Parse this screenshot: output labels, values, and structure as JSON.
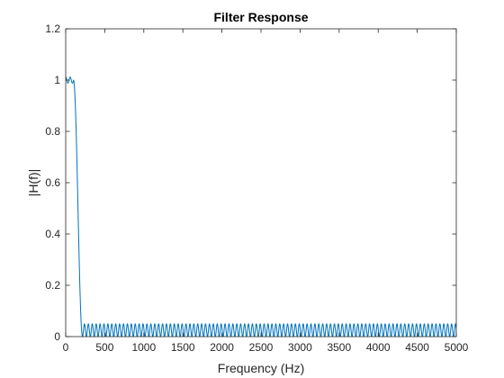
{
  "colors": {
    "line": "#0072BD",
    "axis": "#262626",
    "background": "#ffffff"
  },
  "chart_data": {
    "type": "line",
    "title": "Filter Response",
    "xlabel": "Frequency (Hz)",
    "ylabel": "|H(f)|",
    "xlim": [
      0,
      5000
    ],
    "ylim": [
      0,
      1.2
    ],
    "xticks": [
      0,
      500,
      1000,
      1500,
      2000,
      2500,
      3000,
      3500,
      4000,
      4500,
      5000
    ],
    "yticks": [
      0,
      0.2,
      0.4,
      0.6,
      0.8,
      1,
      1.2
    ],
    "xtick_labels": [
      "0",
      "500",
      "1000",
      "1500",
      "2000",
      "2500",
      "3000",
      "3500",
      "4000",
      "4500",
      "5000"
    ],
    "ytick_labels": [
      "0",
      "0.2",
      "0.4",
      "0.6",
      "0.8",
      "1",
      "1.2"
    ],
    "grid": false,
    "legend": "none",
    "series": [
      {
        "passband": {
          "x_range": [
            0,
            100
          ],
          "level": 1.0,
          "ripple": 0.012
        },
        "transition": {
          "x_range": [
            100,
            215
          ],
          "y_range": [
            1.0,
            0.0
          ]
        },
        "stopband": {
          "x_range": [
            215,
            5000
          ],
          "y_range": [
            0.0,
            0.05
          ],
          "ripple_period": 50
        }
      }
    ]
  }
}
